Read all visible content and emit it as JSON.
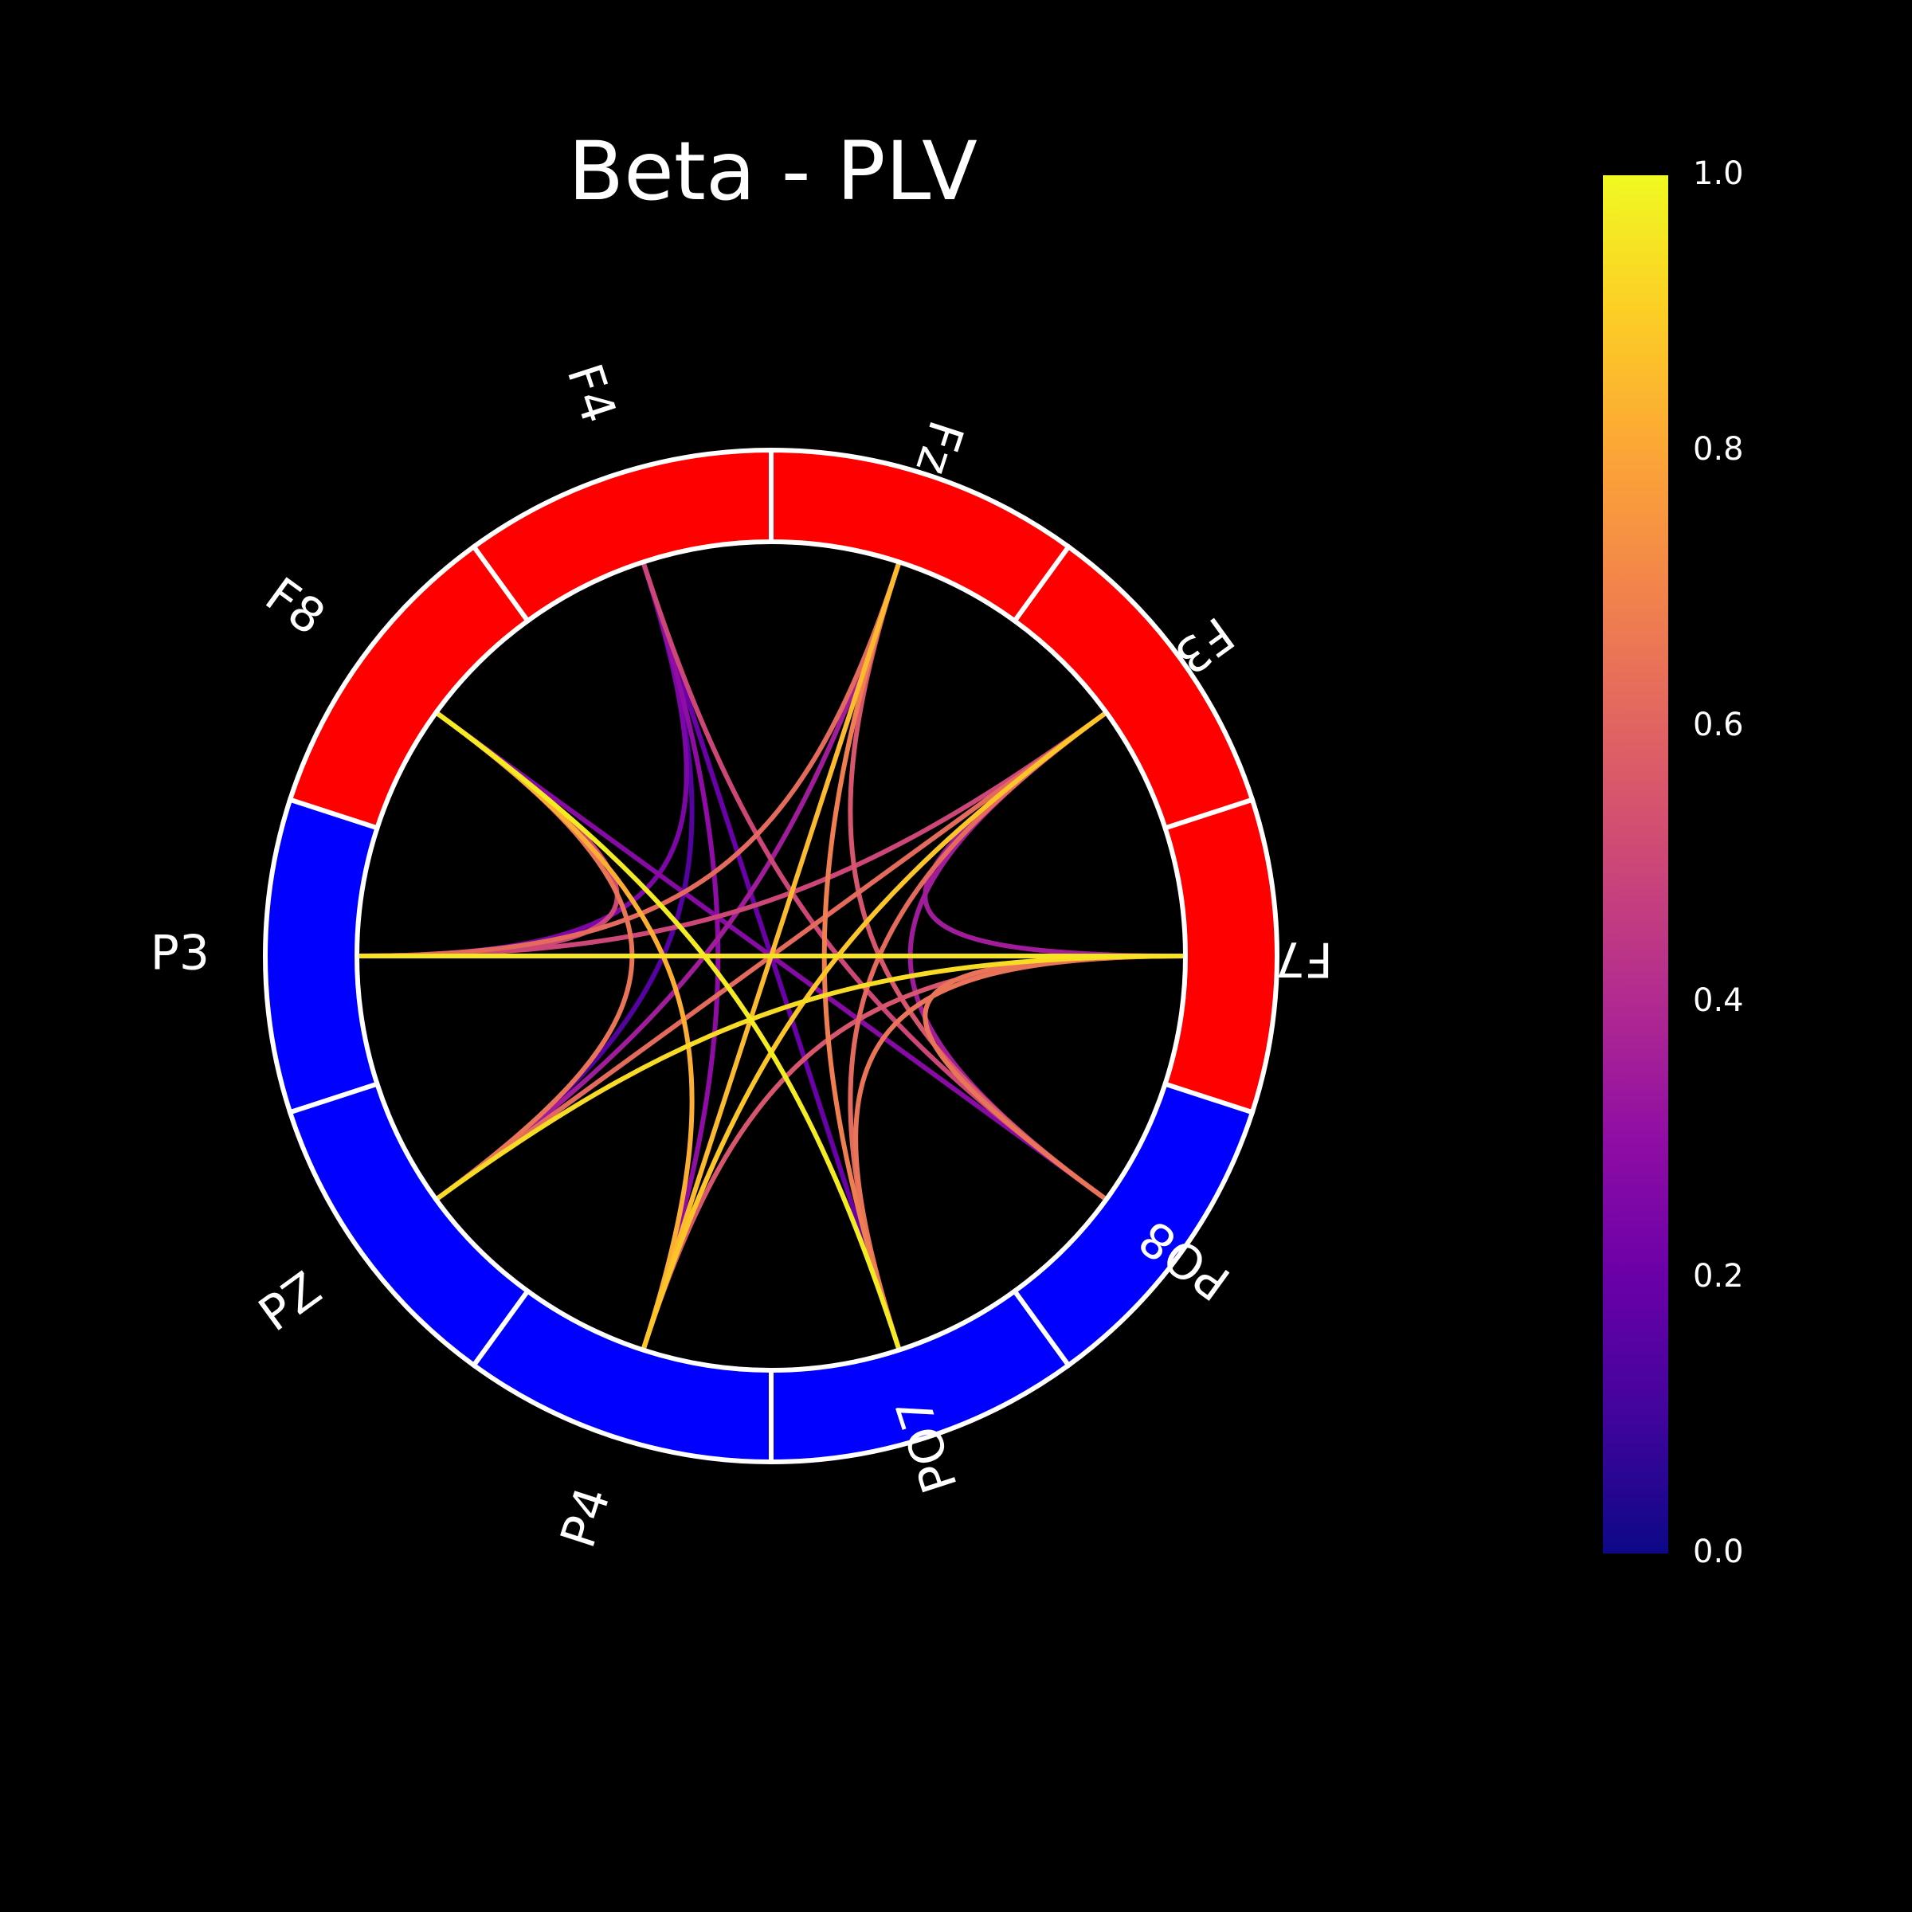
{
  "chart_data": {
    "type": "connectivity-circle",
    "title": "Beta - PLV",
    "nodes": [
      {
        "label": "F7",
        "angle_deg": 0,
        "group": "frontal"
      },
      {
        "label": "F3",
        "angle_deg": 36,
        "group": "frontal"
      },
      {
        "label": "Fz",
        "angle_deg": 72,
        "group": "frontal"
      },
      {
        "label": "F4",
        "angle_deg": 108,
        "group": "frontal"
      },
      {
        "label": "F8",
        "angle_deg": 144,
        "group": "frontal"
      },
      {
        "label": "P3",
        "angle_deg": 180,
        "group": "parietal"
      },
      {
        "label": "PZ",
        "angle_deg": 216,
        "group": "parietal"
      },
      {
        "label": "P4",
        "angle_deg": 252,
        "group": "parietal"
      },
      {
        "label": "PO7",
        "angle_deg": 288,
        "group": "parietal"
      },
      {
        "label": "PO8",
        "angle_deg": 324,
        "group": "parietal"
      }
    ],
    "group_colors": {
      "frontal": "#ff0000",
      "parietal": "#0000ff"
    },
    "connections": [
      {
        "from": "F7",
        "to": "P3",
        "value": 0.95
      },
      {
        "from": "F7",
        "to": "PZ",
        "value": 0.93
      },
      {
        "from": "F7",
        "to": "F3",
        "value": 0.35
      },
      {
        "from": "F7",
        "to": "P4",
        "value": 0.55
      },
      {
        "from": "F7",
        "to": "PO7",
        "value": 0.65
      },
      {
        "from": "F7",
        "to": "PO8",
        "value": 0.65
      },
      {
        "from": "F3",
        "to": "P3",
        "value": 0.5
      },
      {
        "from": "F3",
        "to": "PZ",
        "value": 0.62
      },
      {
        "from": "F3",
        "to": "P4",
        "value": 0.88
      },
      {
        "from": "F3",
        "to": "PO7",
        "value": 0.62
      },
      {
        "from": "F3",
        "to": "PO8",
        "value": 0.35
      },
      {
        "from": "Fz",
        "to": "P3",
        "value": 0.62
      },
      {
        "from": "Fz",
        "to": "PZ",
        "value": 0.35
      },
      {
        "from": "Fz",
        "to": "P4",
        "value": 0.85
      },
      {
        "from": "Fz",
        "to": "PO7",
        "value": 0.68
      },
      {
        "from": "Fz",
        "to": "PO8",
        "value": 0.55
      },
      {
        "from": "F4",
        "to": "P3",
        "value": 0.25
      },
      {
        "from": "F4",
        "to": "PZ",
        "value": 0.15
      },
      {
        "from": "F4",
        "to": "P4",
        "value": 0.3
      },
      {
        "from": "F4",
        "to": "PO7",
        "value": 0.2
      },
      {
        "from": "F4",
        "to": "PO8",
        "value": 0.5
      },
      {
        "from": "F8",
        "to": "P3",
        "value": 0.5
      },
      {
        "from": "F8",
        "to": "PZ",
        "value": 0.65
      },
      {
        "from": "F8",
        "to": "P4",
        "value": 0.82
      },
      {
        "from": "F8",
        "to": "PO7",
        "value": 0.97
      },
      {
        "from": "F8",
        "to": "PO8",
        "value": 0.28
      }
    ],
    "colorbar": {
      "colormap": "plasma",
      "vmin": 0.0,
      "vmax": 1.0,
      "ticks": [
        "0.0",
        "0.2",
        "0.4",
        "0.6",
        "0.8",
        "1.0"
      ]
    },
    "background": "#000000"
  }
}
